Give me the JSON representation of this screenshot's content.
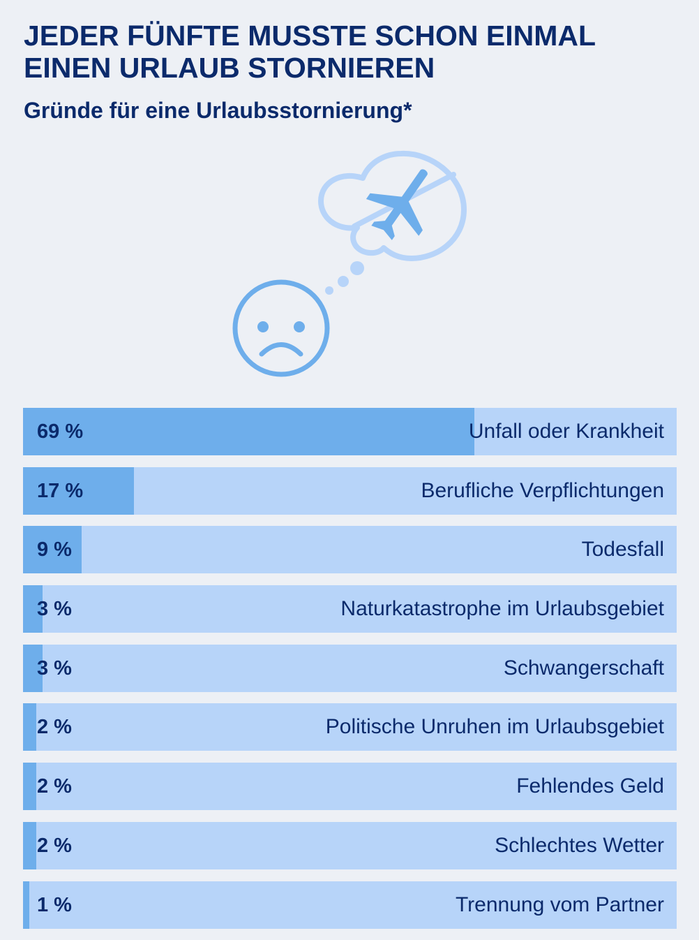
{
  "chart_data": {
    "type": "bar",
    "orientation": "horizontal",
    "title": "JEDER FÜNFTE MUSSTE SCHON EINMAL EINEN URLAUB STORNIEREN",
    "subtitle": "Gründe für eine Urlaubsstornierung*",
    "categories": [
      "Unfall oder Krankheit",
      "Berufliche Verpflichtungen",
      "Todesfall",
      "Naturkatastrophe im Urlaubsgebiet",
      "Schwangerschaft",
      "Politische Unruhen im Urlaubsgebiet",
      "Fehlendes Geld",
      "Schlechtes Wetter",
      "Trennung vom Partner"
    ],
    "values": [
      69,
      17,
      9,
      3,
      3,
      2,
      2,
      2,
      1
    ],
    "value_labels": [
      "69 %",
      "17 %",
      "9 %",
      "3 %",
      "3 %",
      "2 %",
      "2 %",
      "2 %",
      "1 %"
    ],
    "xlim": [
      0,
      100
    ],
    "colors": {
      "fill": "#6eaeeb",
      "track": "#b7d4f9",
      "text": "#0b2a6b"
    }
  },
  "illustration": {
    "icons": [
      "sad-face-icon",
      "thought-bubble-icon",
      "airplane-icon",
      "prohibited-icon"
    ],
    "colors": {
      "primary": "#6eaeeb",
      "light": "#b7d4f9"
    }
  }
}
